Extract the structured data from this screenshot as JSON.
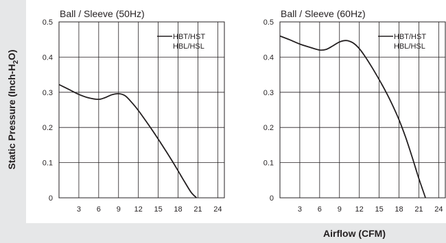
{
  "axes": {
    "ylabel_main": "Static Pressure (Inch-H",
    "ylabel_sub": "2",
    "ylabel_end": "O)",
    "xlabel": "Airflow (CFM)"
  },
  "chart_data": [
    {
      "type": "line",
      "title": "Ball / Sleeve (50Hz)",
      "xlabel": "Airflow (CFM)",
      "ylabel": "Static Pressure (Inch-H2O)",
      "xlim": [
        0,
        25
      ],
      "ylim": [
        0,
        0.5
      ],
      "xticks": [
        3,
        6,
        9,
        12,
        15,
        18,
        21,
        24
      ],
      "yticks": [
        0,
        0.1,
        0.2,
        0.3,
        0.4,
        0.5
      ],
      "grid": true,
      "legend": [
        "HBT/HST",
        "HBL/HSL"
      ],
      "legend_position": "top-right",
      "series": [
        {
          "name": "HBT/HST HBL/HSL",
          "x": [
            0,
            1.5,
            3,
            4.5,
            6,
            7,
            8,
            9,
            10,
            11,
            12,
            13,
            14,
            15,
            16,
            17,
            18,
            19,
            20,
            20.8
          ],
          "y": [
            0.322,
            0.308,
            0.294,
            0.284,
            0.28,
            0.285,
            0.293,
            0.296,
            0.29,
            0.271,
            0.248,
            0.222,
            0.195,
            0.167,
            0.138,
            0.108,
            0.077,
            0.045,
            0.015,
            0
          ]
        }
      ]
    },
    {
      "type": "line",
      "title": "Ball / Sleeve (60Hz)",
      "xlabel": "Airflow (CFM)",
      "ylabel": "Static Pressure (Inch-H2O)",
      "xlim": [
        0,
        25
      ],
      "ylim": [
        0,
        0.5
      ],
      "xticks": [
        3,
        6,
        9,
        12,
        15,
        18,
        21,
        24
      ],
      "yticks": [
        0,
        0.1,
        0.2,
        0.3,
        0.4,
        0.5
      ],
      "grid": true,
      "legend": [
        "HBT/HST",
        "HBL/HSL"
      ],
      "legend_position": "top-right",
      "series": [
        {
          "name": "HBT/HST HBL/HSL",
          "x": [
            0,
            1.5,
            3,
            4.5,
            6,
            7,
            8,
            9,
            10,
            11,
            12,
            13,
            14,
            15,
            16,
            17,
            18,
            19,
            20,
            21,
            22
          ],
          "y": [
            0.46,
            0.449,
            0.437,
            0.428,
            0.42,
            0.422,
            0.432,
            0.443,
            0.447,
            0.441,
            0.424,
            0.398,
            0.368,
            0.336,
            0.302,
            0.264,
            0.222,
            0.172,
            0.115,
            0.055,
            0
          ]
        }
      ]
    }
  ]
}
